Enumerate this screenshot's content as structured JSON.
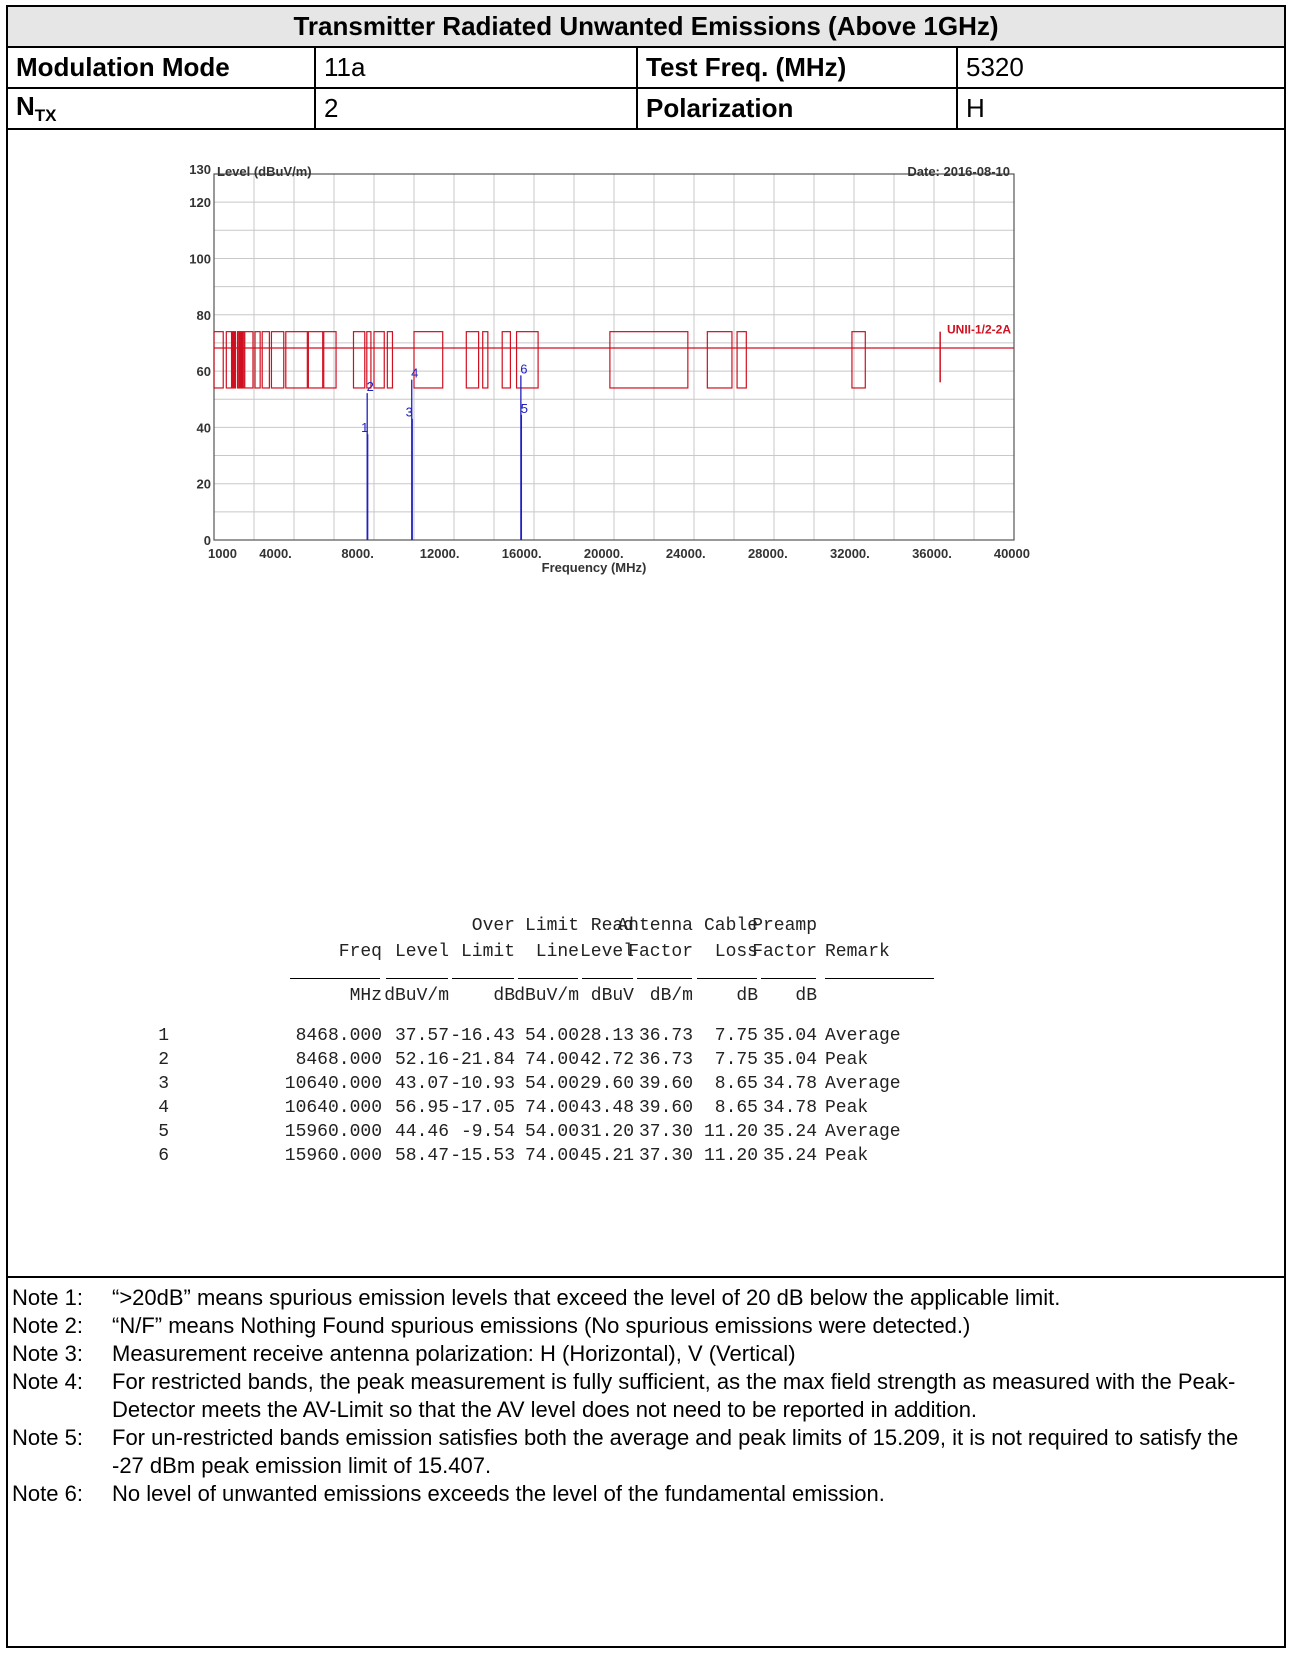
{
  "header": {
    "title": "Transmitter Radiated Unwanted Emissions (Above 1GHz)",
    "modulation_label": "Modulation Mode",
    "modulation_value": "11a",
    "testfreq_label": "Test Freq. (MHz)",
    "testfreq_value": "5320",
    "ntx_label_main": "N",
    "ntx_label_sub": "TX",
    "ntx_value": "2",
    "polarization_label": "Polarization",
    "polarization_value": "H"
  },
  "chart_data": {
    "type": "line",
    "ylabel": "Level (dBuV/m)",
    "xlabel": "Frequency (MHz)",
    "date": "Date: 2016-08-10",
    "ylim": [
      0,
      130
    ],
    "xlim": [
      1000,
      40000
    ],
    "y_ticks": [
      0,
      20,
      40,
      60,
      80,
      100,
      120,
      130
    ],
    "x_tick_labels": [
      "1000",
      "4000.",
      "8000.",
      "12000.",
      "16000.",
      "20000.",
      "24000.",
      "28000.",
      "32000.",
      "36000.",
      "40000"
    ],
    "x_tick_values": [
      1000,
      4000,
      8000,
      12000,
      16000,
      20000,
      24000,
      28000,
      32000,
      36000,
      40000
    ],
    "limit_label": "UNII-1/2-2A",
    "limit_upper": 74,
    "limit_lower": 54,
    "limit_mid": 68.2,
    "markers": [
      {
        "label": "1",
        "freq": 8468,
        "level": 37.57
      },
      {
        "label": "2",
        "freq": 8468,
        "level": 52.16
      },
      {
        "label": "3",
        "freq": 10640,
        "level": 43.07
      },
      {
        "label": "4",
        "freq": 10640,
        "level": 56.95
      },
      {
        "label": "5",
        "freq": 15960,
        "level": 44.46
      },
      {
        "label": "6",
        "freq": 15960,
        "level": 58.47
      }
    ],
    "colors": {
      "limit": "#d01020",
      "marker": "#2020c0",
      "grid": "#c8c8c8"
    }
  },
  "data_table": {
    "head1": [
      "",
      "",
      "Over",
      "Limit",
      "Read",
      "Antenna",
      "Cable",
      "Preamp",
      ""
    ],
    "head2": [
      "Freq",
      "Level",
      "Limit",
      "Line",
      "Level",
      "Factor",
      "Loss",
      "Factor",
      "Remark"
    ],
    "units": [
      "MHz",
      "dBuV/m",
      "dB",
      "dBuV/m",
      "dBuV",
      "dB/m",
      "dB",
      "dB",
      ""
    ],
    "rows": [
      [
        "1",
        "8468.000",
        "37.57",
        "-16.43",
        "54.00",
        "28.13",
        "36.73",
        "7.75",
        "35.04",
        "Average"
      ],
      [
        "2",
        "8468.000",
        "52.16",
        "-21.84",
        "74.00",
        "42.72",
        "36.73",
        "7.75",
        "35.04",
        "Peak"
      ],
      [
        "3",
        "10640.000",
        "43.07",
        "-10.93",
        "54.00",
        "29.60",
        "39.60",
        "8.65",
        "34.78",
        "Average"
      ],
      [
        "4",
        "10640.000",
        "56.95",
        "-17.05",
        "74.00",
        "43.48",
        "39.60",
        "8.65",
        "34.78",
        "Peak"
      ],
      [
        "5",
        "15960.000",
        "44.46",
        "-9.54",
        "54.00",
        "31.20",
        "37.30",
        "11.20",
        "35.24",
        "Average"
      ],
      [
        "6",
        "15960.000",
        "58.47",
        "-15.53",
        "74.00",
        "45.21",
        "37.30",
        "11.20",
        "35.24",
        "Peak"
      ]
    ]
  },
  "notes": [
    {
      "label": "Note 1:",
      "text": "“>20dB” means spurious emission levels that exceed the level of 20 dB below the applicable limit."
    },
    {
      "label": "Note 2:",
      "text": "“N/F” means Nothing Found spurious emissions (No spurious emissions were detected.)"
    },
    {
      "label": "Note 3:",
      "text": "Measurement receive antenna polarization: H (Horizontal), V (Vertical)"
    },
    {
      "label": "Note 4:",
      "text": "For restricted bands, the peak measurement is fully sufficient, as the max field strength as measured with the Peak-Detector meets the AV-Limit so that the AV level does not need to be reported in addition."
    },
    {
      "label": "Note 5:",
      "text": "For un-restricted bands emission satisfies both the average and peak limits of 15.209, it is not required to satisfy the -27 dBm peak emission limit of 15.407."
    },
    {
      "label": "Note 6:",
      "text": "No level of unwanted emissions exceeds the level of the fundamental emission."
    }
  ]
}
